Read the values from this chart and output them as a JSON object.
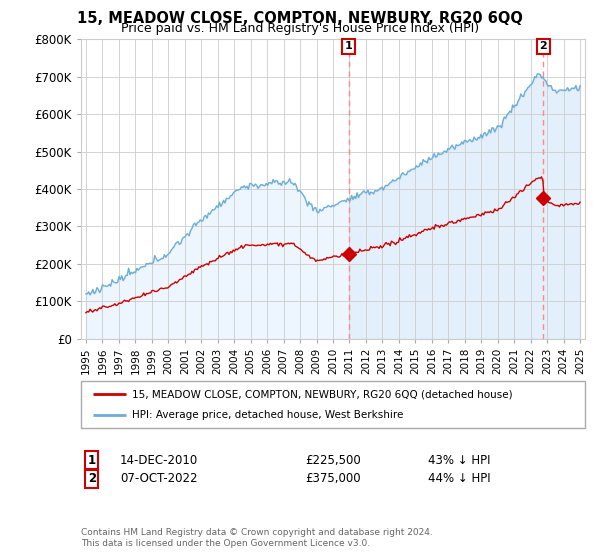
{
  "title": "15, MEADOW CLOSE, COMPTON, NEWBURY, RG20 6QQ",
  "subtitle": "Price paid vs. HM Land Registry's House Price Index (HPI)",
  "ylim": [
    0,
    800000
  ],
  "yticks": [
    0,
    100000,
    200000,
    300000,
    400000,
    500000,
    600000,
    700000,
    800000
  ],
  "ytick_labels": [
    "£0",
    "£100K",
    "£200K",
    "£300K",
    "£400K",
    "£500K",
    "£600K",
    "£700K",
    "£800K"
  ],
  "legend_entry1": "15, MEADOW CLOSE, COMPTON, NEWBURY, RG20 6QQ (detached house)",
  "legend_entry2": "HPI: Average price, detached house, West Berkshire",
  "sale1_date": "14-DEC-2010",
  "sale1_price": "£225,500",
  "sale1_hpi": "43% ↓ HPI",
  "sale1_x": 2010.95,
  "sale1_y": 225500,
  "sale2_date": "07-OCT-2022",
  "sale2_price": "£375,000",
  "sale2_hpi": "44% ↓ HPI",
  "sale2_x": 2022.77,
  "sale2_y": 375000,
  "hpi_color": "#6baed6",
  "hpi_fill_color": "#ddeeff",
  "sale_color": "#cc0000",
  "vline_color": "#ff8888",
  "footnote": "Contains HM Land Registry data © Crown copyright and database right 2024.\nThis data is licensed under the Open Government Licence v3.0.",
  "background_color": "#ffffff",
  "grid_color": "#cccccc",
  "xlim_left": 1994.7,
  "xlim_right": 2025.3
}
